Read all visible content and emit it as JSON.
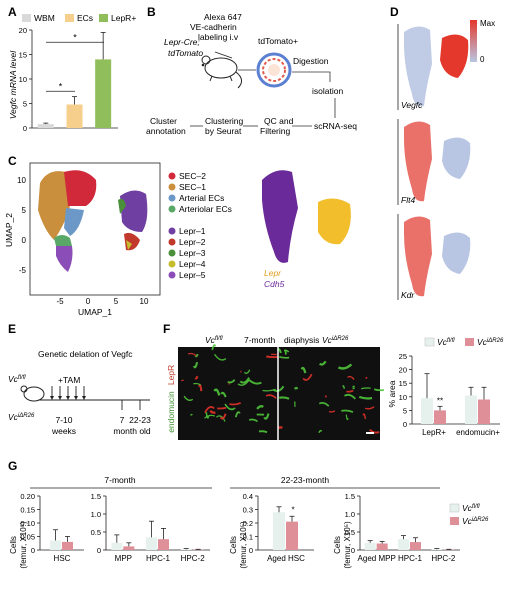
{
  "panels": {
    "A": "A",
    "B": "B",
    "C": "C",
    "D": "D",
    "E": "E",
    "F": "F",
    "G": "G"
  },
  "colors": {
    "wbm": "#d9d9d9",
    "ecs": "#f6cf8c",
    "lepr": "#8fbe5a",
    "ctrl": "#e6f1ee",
    "ko": "#df8f98",
    "sec2": "#d1283a",
    "sec1": "#c98f3c",
    "arterial": "#6b98c7",
    "arteriolar": "#5aa867",
    "lepr1": "#6f3fa1",
    "lepr2": "#c0392b",
    "lepr3": "#4a8f3a",
    "lepr4": "#c5bd2e",
    "lepr5": "#8b4db8",
    "umap_purple": "#6b2a99",
    "umap_yellow": "#f2be2b",
    "heat_low": "#b9c6e3",
    "heat_high": "#e4382c"
  },
  "panel_a": {
    "legend": [
      "WBM",
      "ECs",
      "LepR+"
    ],
    "ylabel": "Vegfc mRNA level",
    "sig": [
      "*",
      "*"
    ]
  },
  "panel_b": {
    "mouse_label_1": "Lepr-Cre;",
    "mouse_label_2": "tdTomato",
    "alexa_1": "Alexa 647",
    "alexa_2": "VE-cadherin",
    "alexa_3": "labeling i.v",
    "tdtomato": "tdTomato+",
    "digestion": "Digestion",
    "isolation": "isolation",
    "scrna": "scRNA-seq",
    "qc_1": "QC and",
    "qc_2": "Filtering",
    "clust_1": "Clustering",
    "clust_2": "by Seurat",
    "annot_1": "Cluster",
    "annot_2": "annotation"
  },
  "panel_c": {
    "ylabel": "UMAP_2",
    "xlabel": "UMAP_1",
    "xticks": [
      "-5",
      "0",
      "5",
      "10"
    ],
    "yticks": [
      "10",
      "5",
      "0",
      "-5"
    ],
    "legend": [
      "SEC–2",
      "SEC–1",
      "Arterial ECs",
      "Arteriolar ECs",
      "Lepr–1",
      "Lepr–2",
      "Lepr–3",
      "Lepr–4",
      "Lepr–5"
    ],
    "overlay_1": "Lepr",
    "overlay_2": "Cdh5"
  },
  "panel_d": {
    "scale_max": "Max",
    "scale_min": "0",
    "genes": [
      "Vegfc",
      "Flt4",
      "Kdr"
    ]
  },
  "panel_e": {
    "title": "Genetic delation of Vegfc",
    "geno_ctrl": "Vc",
    "geno_ctrl_sup": "fl/fl",
    "geno_ko": "Vc",
    "geno_ko_sup": "iΔR26",
    "tam": "+TAM",
    "age1": "7-10",
    "age1b": "weeks",
    "age2": "7",
    "age3": "22-23",
    "age3b": "month old"
  },
  "panel_f": {
    "head_ctrl": "Vc",
    "head_ctrl_sup": "fl/fl",
    "head_mid": "7-month",
    "head_mid2": "diaphysis",
    "head_ko": "Vc",
    "head_ko_sup": "iΔR26",
    "stain_1": "LepR",
    "stain_2": "endomucin",
    "legend_ctrl": "Vc",
    "legend_ctrl_sup": "fl/fl",
    "legend_ko": "Vc",
    "legend_ko_sup": "iΔR26",
    "ylabel": "% area",
    "yticks": [
      "25",
      "20",
      "15",
      "10",
      "5",
      "0"
    ],
    "sig": "**"
  },
  "panel_g": {
    "left_title": "7-month",
    "right_title": "22-23-month",
    "ylabel_1": "Cells",
    "ylabel_2": "(femur, X10⁵)",
    "legend_ctrl": "Vc",
    "legend_ctrl_sup": "fl/fl",
    "legend_ko": "Vc",
    "legend_ko_sup": "iΔR26",
    "sig": "*"
  },
  "chart_data": [
    {
      "type": "bar",
      "panel": "A",
      "categories": [
        "WBM",
        "ECs",
        "LepR+"
      ],
      "values": [
        0.8,
        4.8,
        14.0
      ],
      "errors": [
        0.2,
        1.6,
        5.5
      ],
      "ylabel": "Vegfc mRNA level",
      "ylim": [
        0,
        20
      ],
      "yticks": [
        "0",
        "5",
        "10",
        "15",
        "20"
      ]
    },
    {
      "type": "bar",
      "panel": "F",
      "categories": [
        "LepR+",
        "endomucin+"
      ],
      "series": [
        {
          "name": "Vc fl/fl",
          "values": [
            9.5,
            10.5
          ],
          "errors": [
            9.0,
            3.0
          ]
        },
        {
          "name": "Vc iΔR26",
          "values": [
            5.0,
            9.0
          ],
          "errors": [
            1.5,
            4.5
          ]
        }
      ],
      "ylabel": "% area",
      "ylim": [
        0,
        25
      ],
      "yticks": [
        "25",
        "20",
        "15",
        "10",
        "5",
        "0"
      ]
    },
    {
      "type": "bar",
      "panel": "G-7month-HSC",
      "categories": [
        "HSC"
      ],
      "series": [
        {
          "name": "Vc fl/fl",
          "values": [
            0.035
          ],
          "errors": [
            0.04
          ]
        },
        {
          "name": "Vc iΔR26",
          "values": [
            0.03
          ],
          "errors": [
            0.02
          ]
        }
      ],
      "ylim": [
        0,
        0.2
      ],
      "yticks": [
        "0.20",
        "0.15",
        "0.10",
        "0.05",
        "0"
      ]
    },
    {
      "type": "bar",
      "panel": "G-7month-progenitors",
      "categories": [
        "MPP",
        "HPC-1",
        "HPC-2"
      ],
      "series": [
        {
          "name": "Vc fl/fl",
          "values": [
            0.2,
            0.35,
            0.02
          ],
          "errors": [
            0.22,
            0.45,
            0.02
          ]
        },
        {
          "name": "Vc iΔR26",
          "values": [
            0.1,
            0.3,
            0.01
          ],
          "errors": [
            0.1,
            0.3,
            0.01
          ]
        }
      ],
      "ylim": [
        0,
        1.5
      ],
      "yticks": [
        "1.5",
        "1.0",
        "0.5",
        "0"
      ]
    },
    {
      "type": "bar",
      "panel": "G-22-23month-HSC",
      "categories": [
        "Aged HSC"
      ],
      "series": [
        {
          "name": "Vc fl/fl",
          "values": [
            0.28
          ],
          "errors": [
            0.04
          ]
        },
        {
          "name": "Vc iΔR26",
          "values": [
            0.21
          ],
          "errors": [
            0.04
          ]
        }
      ],
      "ylim": [
        0,
        0.4
      ],
      "yticks": [
        "0.4",
        "0.3",
        "0.2",
        "0.1",
        "0"
      ]
    },
    {
      "type": "bar",
      "panel": "G-22-23month-progenitors",
      "categories": [
        "Aged MPP",
        "HPC-1",
        "HPC-2"
      ],
      "series": [
        {
          "name": "Vc fl/fl",
          "values": [
            0.2,
            0.3,
            0.02
          ],
          "errors": [
            0.06,
            0.1,
            0.02
          ]
        },
        {
          "name": "Vc iΔR26",
          "values": [
            0.18,
            0.22,
            0.01
          ],
          "errors": [
            0.06,
            0.12,
            0.01
          ]
        }
      ],
      "ylim": [
        0,
        1.5
      ],
      "yticks": [
        "1.5",
        "1.0",
        "0.5",
        "0"
      ]
    }
  ]
}
